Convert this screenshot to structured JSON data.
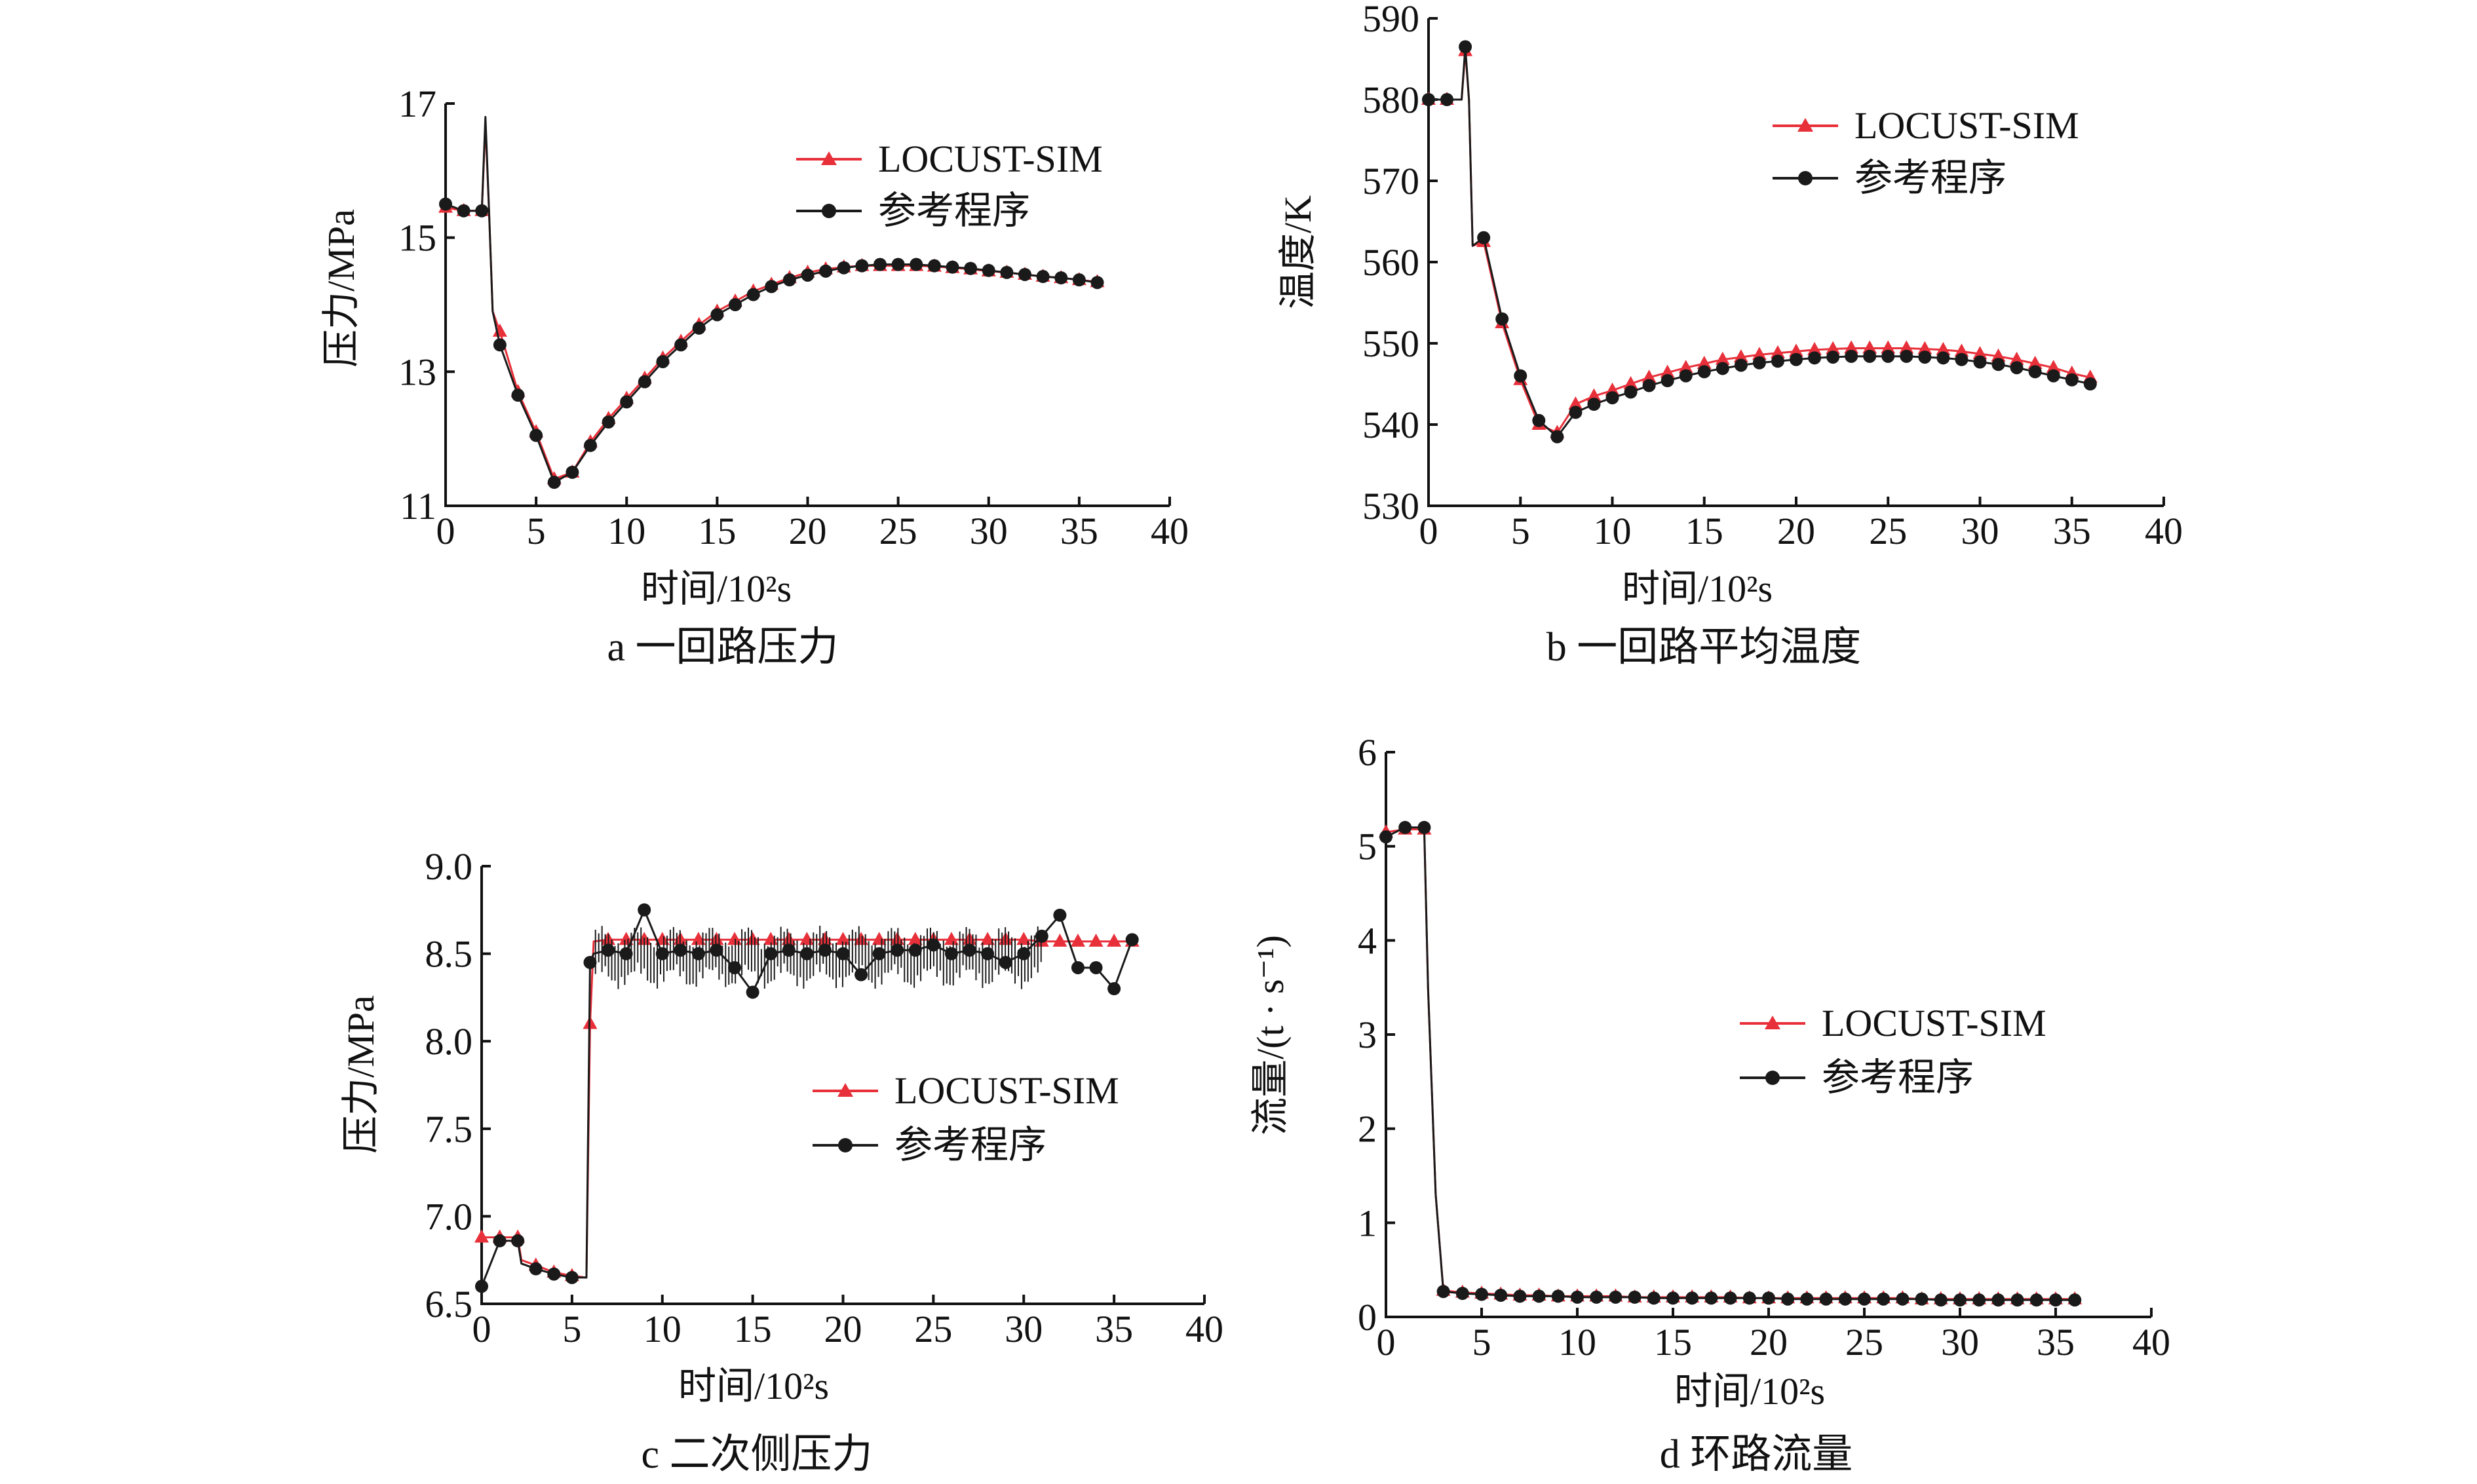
{
  "chart_data": [
    {
      "id": "a",
      "type": "line",
      "caption": "a  一回路压力",
      "xlabel": "时间/10²s",
      "ylabel": "压力/MPa",
      "xlim": [
        0,
        40
      ],
      "ylim": [
        11,
        17
      ],
      "xticks": [
        "0",
        "5",
        "10",
        "15",
        "20",
        "25",
        "30",
        "35",
        "40"
      ],
      "yticks": [
        "11",
        "13",
        "15",
        "17"
      ],
      "legend_position": "top-right",
      "series": [
        {
          "name": "LOCUST-SIM",
          "color": "#e8303a",
          "marker": "triangle",
          "x": [
            0,
            1,
            2,
            2.2,
            2.4,
            2.6,
            3,
            4,
            5,
            6,
            7,
            8,
            9,
            10,
            11,
            12,
            13,
            14,
            15,
            16,
            17,
            18,
            19,
            20,
            21,
            22,
            23,
            24,
            25,
            26,
            27,
            28,
            29,
            30,
            31,
            32,
            33,
            34,
            35,
            36
          ],
          "y": [
            15.45,
            15.4,
            15.4,
            16.7,
            15.4,
            13.9,
            13.6,
            12.7,
            12.1,
            11.4,
            11.5,
            11.95,
            12.3,
            12.6,
            12.9,
            13.2,
            13.45,
            13.7,
            13.9,
            14.05,
            14.2,
            14.3,
            14.4,
            14.48,
            14.53,
            14.56,
            14.58,
            14.58,
            14.58,
            14.58,
            14.57,
            14.55,
            14.53,
            14.5,
            14.48,
            14.45,
            14.42,
            14.4,
            14.37,
            14.34
          ]
        },
        {
          "name": "参考程序",
          "color": "#1a1a1a",
          "marker": "circle",
          "x": [
            0,
            1,
            2,
            2.2,
            2.4,
            2.6,
            3,
            4,
            5,
            6,
            7,
            8,
            9,
            10,
            11,
            12,
            13,
            14,
            15,
            16,
            17,
            18,
            19,
            20,
            21,
            22,
            23,
            24,
            25,
            26,
            27,
            28,
            29,
            30,
            31,
            32,
            33,
            34,
            35,
            36
          ],
          "y": [
            15.5,
            15.4,
            15.4,
            16.8,
            15.4,
            13.9,
            13.4,
            12.65,
            12.05,
            11.35,
            11.5,
            11.9,
            12.25,
            12.55,
            12.85,
            13.15,
            13.4,
            13.65,
            13.85,
            14.0,
            14.15,
            14.27,
            14.37,
            14.44,
            14.5,
            14.55,
            14.58,
            14.6,
            14.6,
            14.6,
            14.58,
            14.56,
            14.54,
            14.51,
            14.48,
            14.45,
            14.42,
            14.4,
            14.37,
            14.33
          ]
        }
      ]
    },
    {
      "id": "b",
      "type": "line",
      "caption": "b  一回路平均温度",
      "xlabel": "时间/10²s",
      "ylabel": "温度/K",
      "xlim": [
        0,
        40
      ],
      "ylim": [
        530,
        590
      ],
      "xticks": [
        "0",
        "5",
        "10",
        "15",
        "20",
        "25",
        "30",
        "35",
        "40"
      ],
      "yticks": [
        "530",
        "540",
        "550",
        "560",
        "570",
        "580",
        "590"
      ],
      "legend_position": "top-right",
      "series": [
        {
          "name": "LOCUST-SIM",
          "color": "#e8303a",
          "marker": "triangle",
          "x": [
            0,
            1,
            1.8,
            2.0,
            2.2,
            2.4,
            3,
            4,
            5,
            6,
            7,
            8,
            9,
            10,
            11,
            12,
            13,
            14,
            15,
            16,
            17,
            18,
            19,
            20,
            21,
            22,
            23,
            24,
            25,
            26,
            27,
            28,
            29,
            30,
            31,
            32,
            33,
            34,
            35,
            36
          ],
          "y": [
            580,
            580,
            580,
            586,
            580,
            562,
            562.5,
            552.5,
            545.5,
            540,
            539,
            542.5,
            543.5,
            544.2,
            545,
            545.8,
            546.4,
            547,
            547.5,
            548,
            548.3,
            548.6,
            548.8,
            549,
            549.2,
            549.3,
            549.4,
            549.4,
            549.4,
            549.4,
            549.3,
            549.2,
            549,
            548.7,
            548.4,
            548,
            547.5,
            547,
            546.3,
            545.8
          ]
        },
        {
          "name": "参考程序",
          "color": "#1a1a1a",
          "marker": "circle",
          "x": [
            0,
            1,
            1.8,
            2.0,
            2.2,
            2.4,
            3,
            4,
            5,
            6,
            7,
            8,
            9,
            10,
            11,
            12,
            13,
            14,
            15,
            16,
            17,
            18,
            19,
            20,
            21,
            22,
            23,
            24,
            25,
            26,
            27,
            28,
            29,
            30,
            31,
            32,
            33,
            34,
            35,
            36
          ],
          "y": [
            580,
            580,
            580,
            586.5,
            580,
            562,
            563,
            553,
            546,
            540.5,
            538.5,
            541.5,
            542.5,
            543.3,
            544,
            544.8,
            545.4,
            546,
            546.5,
            546.9,
            547.3,
            547.6,
            547.8,
            548,
            548.2,
            548.3,
            548.4,
            548.4,
            548.4,
            548.4,
            548.3,
            548.2,
            548,
            547.7,
            547.4,
            547,
            546.5,
            546,
            545.5,
            545
          ]
        }
      ]
    },
    {
      "id": "c",
      "type": "line",
      "caption": "c  二次侧压力",
      "xlabel": "时间/10²s",
      "ylabel": "压力/MPa",
      "xlim": [
        0,
        40
      ],
      "ylim": [
        6.5,
        9.0
      ],
      "xticks": [
        "0",
        "5",
        "10",
        "15",
        "20",
        "25",
        "30",
        "35",
        "40"
      ],
      "yticks": [
        "6.5",
        "7.0",
        "7.5",
        "8.0",
        "8.5",
        "9.0"
      ],
      "legend_position": "center-right",
      "series": [
        {
          "name": "LOCUST-SIM",
          "color": "#e8303a",
          "marker": "triangle",
          "x": [
            0,
            1,
            2,
            2.2,
            3,
            4,
            5,
            5.8,
            6,
            6.2,
            7,
            8,
            9,
            10,
            11,
            12,
            13,
            14,
            15,
            16,
            17,
            18,
            19,
            20,
            21,
            22,
            23,
            24,
            25,
            26,
            27,
            28,
            29,
            30,
            31,
            32,
            33,
            34,
            35,
            36
          ],
          "y": [
            6.88,
            6.88,
            6.88,
            6.75,
            6.72,
            6.68,
            6.66,
            6.65,
            8.1,
            8.57,
            8.58,
            8.58,
            8.58,
            8.58,
            8.58,
            8.58,
            8.58,
            8.58,
            8.58,
            8.58,
            8.58,
            8.58,
            8.58,
            8.58,
            8.58,
            8.58,
            8.58,
            8.58,
            8.58,
            8.58,
            8.58,
            8.58,
            8.58,
            8.58,
            8.57,
            8.57,
            8.57,
            8.57,
            8.57,
            8.57
          ]
        },
        {
          "name": "参考程序",
          "color": "#1a1a1a",
          "marker": "circle",
          "x": [
            0,
            1,
            2,
            2.2,
            3,
            4,
            5,
            5.8,
            6,
            6.2,
            7,
            8,
            9,
            10,
            11,
            12,
            13,
            14,
            15,
            16,
            17,
            18,
            19,
            20,
            21,
            22,
            23,
            24,
            25,
            26,
            27,
            28,
            29,
            30,
            31,
            32,
            33,
            34,
            35,
            36
          ],
          "y": [
            6.6,
            6.86,
            6.86,
            6.73,
            6.7,
            6.67,
            6.65,
            6.65,
            8.45,
            8.5,
            8.52,
            8.5,
            8.75,
            8.5,
            8.52,
            8.5,
            8.52,
            8.42,
            8.28,
            8.5,
            8.52,
            8.5,
            8.52,
            8.5,
            8.38,
            8.5,
            8.52,
            8.52,
            8.55,
            8.5,
            8.52,
            8.5,
            8.45,
            8.5,
            8.6,
            8.72,
            8.42,
            8.42,
            8.3,
            8.58
          ]
        }
      ]
    },
    {
      "id": "d",
      "type": "line",
      "caption": "d  环路流量",
      "xlabel": "时间/10²s",
      "ylabel": "流量/(t · s⁻¹)",
      "xlim": [
        0,
        40
      ],
      "ylim": [
        0,
        6
      ],
      "xticks": [
        "0",
        "5",
        "10",
        "15",
        "20",
        "25",
        "30",
        "35",
        "40"
      ],
      "yticks": [
        "0",
        "1",
        "2",
        "3",
        "4",
        "5",
        "6"
      ],
      "legend_position": "center-right",
      "series": [
        {
          "name": "LOCUST-SIM",
          "color": "#e8303a",
          "marker": "triangle",
          "x": [
            0,
            1,
            2,
            2.2,
            2.6,
            3,
            4,
            5,
            6,
            7,
            8,
            9,
            10,
            11,
            12,
            13,
            14,
            15,
            16,
            17,
            18,
            19,
            20,
            21,
            22,
            23,
            24,
            25,
            26,
            27,
            28,
            29,
            30,
            31,
            32,
            33,
            34,
            35,
            36
          ],
          "y": [
            5.15,
            5.18,
            5.18,
            3.5,
            1.3,
            0.28,
            0.26,
            0.25,
            0.24,
            0.23,
            0.23,
            0.22,
            0.22,
            0.22,
            0.22,
            0.21,
            0.21,
            0.21,
            0.21,
            0.21,
            0.21,
            0.2,
            0.2,
            0.2,
            0.2,
            0.2,
            0.2,
            0.2,
            0.2,
            0.2,
            0.19,
            0.19,
            0.19,
            0.19,
            0.19,
            0.19,
            0.19,
            0.19,
            0.19
          ]
        },
        {
          "name": "参考程序",
          "color": "#1a1a1a",
          "marker": "circle",
          "x": [
            0,
            1,
            2,
            2.2,
            2.6,
            3,
            4,
            5,
            6,
            7,
            8,
            9,
            10,
            11,
            12,
            13,
            14,
            15,
            16,
            17,
            18,
            19,
            20,
            21,
            22,
            23,
            24,
            25,
            26,
            27,
            28,
            29,
            30,
            31,
            32,
            33,
            34,
            35,
            36
          ],
          "y": [
            5.1,
            5.2,
            5.2,
            3.5,
            1.3,
            0.27,
            0.25,
            0.24,
            0.23,
            0.22,
            0.22,
            0.22,
            0.21,
            0.21,
            0.21,
            0.21,
            0.2,
            0.2,
            0.2,
            0.2,
            0.2,
            0.2,
            0.2,
            0.19,
            0.19,
            0.19,
            0.19,
            0.19,
            0.19,
            0.19,
            0.19,
            0.18,
            0.18,
            0.18,
            0.18,
            0.18,
            0.18,
            0.18,
            0.18
          ]
        }
      ]
    }
  ]
}
